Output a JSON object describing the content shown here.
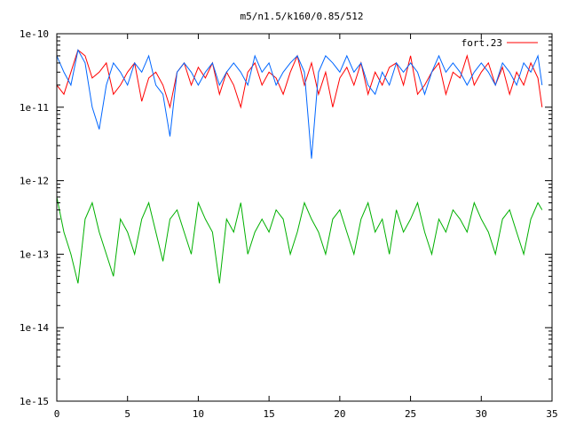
{
  "chart_data": {
    "type": "line",
    "title": "m5/n1.5/k160/0.85/512",
    "xlabel": "",
    "ylabel": "",
    "xlim": [
      0,
      35
    ],
    "ylim": [
      1e-15,
      1e-10
    ],
    "yscale": "log",
    "xticks": [
      0,
      5,
      10,
      15,
      20,
      25,
      30,
      35
    ],
    "xtick_labels": [
      "0",
      "5",
      "10",
      "15",
      "20",
      "25",
      "30",
      "35"
    ],
    "yticks": [
      1e-15,
      1e-14,
      1e-13,
      1e-12,
      1e-11,
      1e-10
    ],
    "ytick_labels": [
      "1e-15",
      "1e-14",
      "1e-13",
      "1e-12",
      "1e-11",
      "1e-10"
    ],
    "grid": false,
    "legend_position": "top-right",
    "series": [
      {
        "name": "fort.23",
        "color": "#ff0000",
        "x": [
          0,
          0.5,
          1,
          1.5,
          2,
          2.5,
          3,
          3.5,
          4,
          4.5,
          5,
          5.5,
          6,
          6.5,
          7,
          7.5,
          8,
          8.5,
          9,
          9.5,
          10,
          10.5,
          11,
          11.5,
          12,
          12.5,
          13,
          13.5,
          14,
          14.5,
          15,
          15.5,
          16,
          16.5,
          17,
          17.5,
          18,
          18.5,
          19,
          19.5,
          20,
          20.5,
          21,
          21.5,
          22,
          22.5,
          23,
          23.5,
          24,
          24.5,
          25,
          25.5,
          26,
          26.5,
          27,
          27.5,
          28,
          28.5,
          29,
          29.5,
          30,
          30.5,
          31,
          31.5,
          32,
          32.5,
          33,
          33.5,
          34,
          34.3
        ],
        "y": [
          2e-11,
          1.5e-11,
          3e-11,
          6e-11,
          5e-11,
          2.5e-11,
          3e-11,
          4e-11,
          1.5e-11,
          2e-11,
          3e-11,
          4e-11,
          1.2e-11,
          2.5e-11,
          3e-11,
          2e-11,
          1e-11,
          3e-11,
          4e-11,
          2e-11,
          3.5e-11,
          2.5e-11,
          4e-11,
          1.5e-11,
          3e-11,
          2e-11,
          1e-11,
          3e-11,
          4e-11,
          2e-11,
          3e-11,
          2.5e-11,
          1.5e-11,
          3e-11,
          5e-11,
          2e-11,
          4e-11,
          1.5e-11,
          3e-11,
          1e-11,
          2.5e-11,
          3.5e-11,
          2e-11,
          4e-11,
          1.5e-11,
          3e-11,
          2e-11,
          3.5e-11,
          4e-11,
          2e-11,
          5e-11,
          1.5e-11,
          2e-11,
          3e-11,
          4e-11,
          1.5e-11,
          3e-11,
          2.5e-11,
          5e-11,
          2e-11,
          3e-11,
          4e-11,
          2e-11,
          3.5e-11,
          1.5e-11,
          3e-11,
          2e-11,
          4e-11,
          2.5e-11,
          1e-11
        ]
      },
      {
        "name": "",
        "color": "#0066ff",
        "x": [
          0,
          0.5,
          1,
          1.5,
          2,
          2.5,
          3,
          3.5,
          4,
          4.5,
          5,
          5.5,
          6,
          6.5,
          7,
          7.5,
          8,
          8.5,
          9,
          9.5,
          10,
          10.5,
          11,
          11.5,
          12,
          12.5,
          13,
          13.5,
          14,
          14.5,
          15,
          15.5,
          16,
          16.5,
          17,
          17.5,
          18,
          18.5,
          19,
          19.5,
          20,
          20.5,
          21,
          21.5,
          22,
          22.5,
          23,
          23.5,
          24,
          24.5,
          25,
          25.5,
          26,
          26.5,
          27,
          27.5,
          28,
          28.5,
          29,
          29.5,
          30,
          30.5,
          31,
          31.5,
          32,
          32.5,
          33,
          33.5,
          34,
          34.3
        ],
        "y": [
          5e-11,
          3e-11,
          2e-11,
          6e-11,
          4e-11,
          1e-11,
          5e-12,
          2e-11,
          4e-11,
          3e-11,
          2e-11,
          4e-11,
          3e-11,
          5e-11,
          2e-11,
          1.5e-11,
          4e-12,
          3e-11,
          4e-11,
          3e-11,
          2e-11,
          3e-11,
          4e-11,
          2e-11,
          3e-11,
          4e-11,
          3e-11,
          2e-11,
          5e-11,
          3e-11,
          4e-11,
          2e-11,
          3e-11,
          4e-11,
          5e-11,
          3e-11,
          2e-12,
          3e-11,
          5e-11,
          4e-11,
          3e-11,
          5e-11,
          3e-11,
          4e-11,
          2e-11,
          1.5e-11,
          3e-11,
          2e-11,
          4e-11,
          3e-11,
          4e-11,
          3e-11,
          1.5e-11,
          3e-11,
          5e-11,
          3e-11,
          4e-11,
          3e-11,
          2e-11,
          3e-11,
          4e-11,
          3e-11,
          2e-11,
          4e-11,
          3e-11,
          2e-11,
          4e-11,
          3e-11,
          5e-11,
          2e-11
        ]
      },
      {
        "name": "",
        "color": "#00b000",
        "x": [
          0,
          0.5,
          1,
          1.5,
          2,
          2.5,
          3,
          3.5,
          4,
          4.5,
          5,
          5.5,
          6,
          6.5,
          7,
          7.5,
          8,
          8.5,
          9,
          9.5,
          10,
          10.5,
          11,
          11.5,
          12,
          12.5,
          13,
          13.5,
          14,
          14.5,
          15,
          15.5,
          16,
          16.5,
          17,
          17.5,
          18,
          18.5,
          19,
          19.5,
          20,
          20.5,
          21,
          21.5,
          22,
          22.5,
          23,
          23.5,
          24,
          24.5,
          25,
          25.5,
          26,
          26.5,
          27,
          27.5,
          28,
          28.5,
          29,
          29.5,
          30,
          30.5,
          31,
          31.5,
          32,
          32.5,
          33,
          33.5,
          34,
          34.3
        ],
        "y": [
          6e-13,
          2e-13,
          1e-13,
          4e-14,
          3e-13,
          5e-13,
          2e-13,
          1e-13,
          5e-14,
          3e-13,
          2e-13,
          1e-13,
          3e-13,
          5e-13,
          2e-13,
          8e-14,
          3e-13,
          4e-13,
          2e-13,
          1e-13,
          5e-13,
          3e-13,
          2e-13,
          4e-14,
          3e-13,
          2e-13,
          5e-13,
          1e-13,
          2e-13,
          3e-13,
          2e-13,
          4e-13,
          3e-13,
          1e-13,
          2e-13,
          5e-13,
          3e-13,
          2e-13,
          1e-13,
          3e-13,
          4e-13,
          2e-13,
          1e-13,
          3e-13,
          5e-13,
          2e-13,
          3e-13,
          1e-13,
          4e-13,
          2e-13,
          3e-13,
          5e-13,
          2e-13,
          1e-13,
          3e-13,
          2e-13,
          4e-13,
          3e-13,
          2e-13,
          5e-13,
          3e-13,
          2e-13,
          1e-13,
          3e-13,
          4e-13,
          2e-13,
          1e-13,
          3e-13,
          5e-13,
          4e-13
        ]
      }
    ]
  }
}
